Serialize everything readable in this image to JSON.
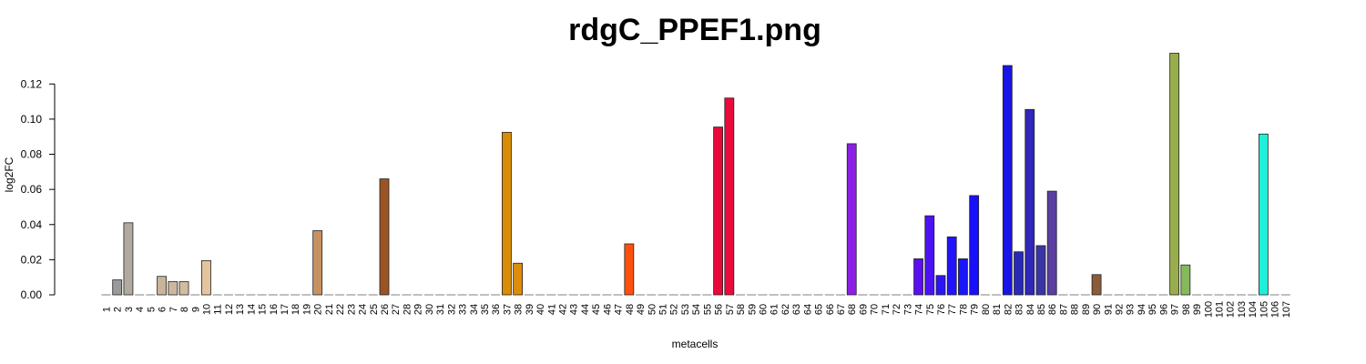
{
  "chart_data": {
    "type": "bar",
    "title": "rdgC_PPEF1.png",
    "xlabel": "metacells",
    "ylabel": "log2FC",
    "ylim": [
      0,
      0.135
    ],
    "yticks": [
      "0.00",
      "0.02",
      "0.04",
      "0.06",
      "0.08",
      "0.10",
      "0.12"
    ],
    "grid": false,
    "categories": [
      "1",
      "2",
      "3",
      "4",
      "5",
      "6",
      "7",
      "8",
      "9",
      "10",
      "11",
      "12",
      "13",
      "14",
      "15",
      "16",
      "17",
      "18",
      "19",
      "20",
      "21",
      "22",
      "23",
      "24",
      "25",
      "26",
      "27",
      "28",
      "29",
      "30",
      "31",
      "32",
      "33",
      "34",
      "35",
      "36",
      "37",
      "38",
      "39",
      "40",
      "41",
      "42",
      "43",
      "44",
      "45",
      "46",
      "47",
      "48",
      "49",
      "50",
      "51",
      "52",
      "53",
      "54",
      "55",
      "56",
      "57",
      "58",
      "59",
      "60",
      "61",
      "62",
      "63",
      "64",
      "65",
      "66",
      "67",
      "68",
      "69",
      "70",
      "71",
      "72",
      "73",
      "74",
      "75",
      "76",
      "77",
      "78",
      "79",
      "80",
      "81",
      "82",
      "83",
      "84",
      "85",
      "86",
      "87",
      "88",
      "89",
      "90",
      "91",
      "92",
      "93",
      "94",
      "95",
      "96",
      "97",
      "98",
      "99",
      "100",
      "101",
      "102",
      "103",
      "104",
      "105",
      "106",
      "107"
    ],
    "values": [
      0,
      0.0085,
      0.041,
      0,
      0,
      0.0105,
      0.0075,
      0.0075,
      0,
      0.0195,
      0,
      0,
      0,
      0,
      0,
      0,
      0,
      0,
      0,
      0.0365,
      0,
      0,
      0,
      0,
      0,
      0.066,
      0,
      0,
      0,
      0,
      0,
      0,
      0,
      0,
      0,
      0,
      0.0925,
      0.018,
      0,
      0,
      0,
      0,
      0,
      0,
      0,
      0,
      0,
      0.029,
      0,
      0,
      0,
      0,
      0,
      0,
      0,
      0.0955,
      0.112,
      0,
      0,
      0,
      0,
      0,
      0,
      0,
      0,
      0,
      0,
      0.086,
      0,
      0,
      0,
      0,
      0,
      0.0205,
      0.045,
      0.011,
      0.033,
      0.0205,
      0.0565,
      0,
      0,
      0.1305,
      0.0245,
      0.1055,
      0.028,
      0.059,
      0,
      0,
      0,
      0.0115,
      0,
      0,
      0,
      0,
      0,
      0,
      0.1375,
      0.017,
      0,
      0,
      0,
      0,
      0,
      0,
      0.0915,
      0,
      0
    ],
    "colors": [
      "#808080",
      "#9a9a9a",
      "#b0aaa0",
      "#808080",
      "#808080",
      "#c8b49a",
      "#cdb89c",
      "#d2bc9f",
      "#808080",
      "#e4c49e",
      "#808080",
      "#808080",
      "#808080",
      "#808080",
      "#808080",
      "#808080",
      "#808080",
      "#808080",
      "#808080",
      "#c79263",
      "#808080",
      "#808080",
      "#808080",
      "#808080",
      "#808080",
      "#9b5425",
      "#808080",
      "#808080",
      "#808080",
      "#808080",
      "#808080",
      "#808080",
      "#808080",
      "#808080",
      "#808080",
      "#808080",
      "#d98c06",
      "#de8c0c",
      "#808080",
      "#808080",
      "#808080",
      "#808080",
      "#808080",
      "#808080",
      "#808080",
      "#808080",
      "#808080",
      "#ff4f0d",
      "#808080",
      "#808080",
      "#808080",
      "#808080",
      "#808080",
      "#808080",
      "#808080",
      "#e8083a",
      "#ea0a3c",
      "#808080",
      "#808080",
      "#808080",
      "#808080",
      "#808080",
      "#808080",
      "#808080",
      "#808080",
      "#808080",
      "#808080",
      "#8c1fe6",
      "#808080",
      "#808080",
      "#808080",
      "#808080",
      "#808080",
      "#5a0ff0",
      "#4a12f5",
      "#2b14f8",
      "#2214f8",
      "#1a16fa",
      "#1810fb",
      "#808080",
      "#808080",
      "#1914e6",
      "#2a28b8",
      "#3026b8",
      "#3a35a6",
      "#5a3ea0",
      "#808080",
      "#808080",
      "#808080",
      "#8a5c3a",
      "#808080",
      "#808080",
      "#808080",
      "#808080",
      "#808080",
      "#808080",
      "#98ae4c",
      "#86b95c",
      "#808080",
      "#808080",
      "#808080",
      "#808080",
      "#808080",
      "#808080",
      "#1ef0d8",
      "#808080",
      "#808080"
    ]
  }
}
